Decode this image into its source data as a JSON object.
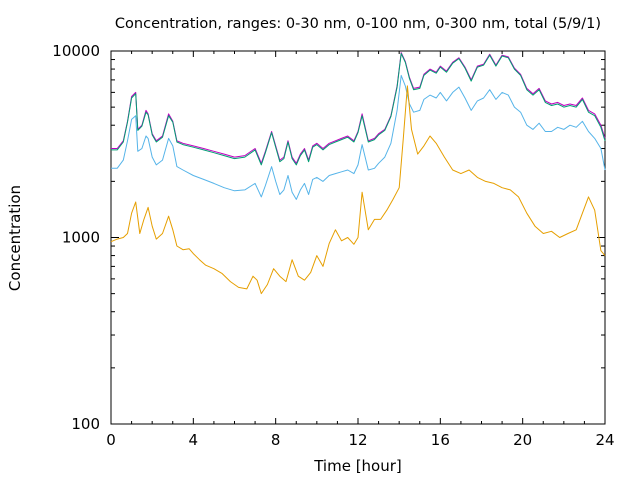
{
  "chart_data": {
    "type": "line",
    "title": "Concentration, ranges: 0-30 nm, 0-100 nm, 0-300 nm, total (5/9/1)",
    "xlabel": "Time [hour]",
    "ylabel": "Concentration",
    "xlim": [
      0,
      24
    ],
    "ylim": [
      100,
      10000
    ],
    "yscale": "log",
    "grid": false,
    "legend": "none",
    "x_ticks": [
      0,
      4,
      8,
      12,
      16,
      20,
      24
    ],
    "x_tick_labels": [
      "0",
      "4",
      "8",
      "12",
      "16",
      "20",
      "24"
    ],
    "y_ticks": [
      100,
      1000,
      10000
    ],
    "y_tick_labels": [
      "100",
      "1000",
      "10000"
    ],
    "series": [
      {
        "color": "#c000c0",
        "x": [
          0,
          0.3,
          0.6,
          0.8,
          1.0,
          1.2,
          1.3,
          1.5,
          1.7,
          1.8,
          2.0,
          2.2,
          2.5,
          2.8,
          3.0,
          3.2,
          3.5,
          4.0,
          4.5,
          5.0,
          5.5,
          6.0,
          6.5,
          7.0,
          7.3,
          7.5,
          7.8,
          8.0,
          8.2,
          8.4,
          8.6,
          8.8,
          9.0,
          9.2,
          9.4,
          9.6,
          9.8,
          10.0,
          10.3,
          10.6,
          10.9,
          11.2,
          11.5,
          11.8,
          12.0,
          12.2,
          12.5,
          12.8,
          13.0,
          13.3,
          13.6,
          13.9,
          14.1,
          14.3,
          14.5,
          14.7,
          15.0,
          15.2,
          15.5,
          15.8,
          16.0,
          16.3,
          16.6,
          16.9,
          17.2,
          17.5,
          17.8,
          18.1,
          18.4,
          18.7,
          19.0,
          19.3,
          19.6,
          19.9,
          20.2,
          20.5,
          20.8,
          21.1,
          21.4,
          21.7,
          22.0,
          22.3,
          22.6,
          22.9,
          23.2,
          23.5,
          23.8,
          24.0
        ],
        "y": [
          3000,
          3000,
          3300,
          4200,
          5700,
          6000,
          3800,
          4000,
          4800,
          4600,
          3600,
          3300,
          3500,
          4600,
          4200,
          3300,
          3200,
          3100,
          3000,
          2900,
          2800,
          2700,
          2750,
          3000,
          2500,
          2900,
          3700,
          3100,
          2600,
          2700,
          3300,
          2700,
          2500,
          2800,
          3000,
          2600,
          3100,
          3200,
          3000,
          3200,
          3300,
          3400,
          3500,
          3300,
          3700,
          4600,
          3300,
          3400,
          3600,
          3800,
          4500,
          6500,
          9800,
          8800,
          7200,
          6300,
          6400,
          7500,
          8000,
          7700,
          8300,
          7800,
          8700,
          9200,
          8200,
          7000,
          8300,
          8500,
          9600,
          8400,
          9500,
          9300,
          8100,
          7500,
          6300,
          5900,
          6300,
          5400,
          5200,
          5300,
          5100,
          5200,
          5100,
          5600,
          4800,
          4600,
          4000,
          3400
        ]
      },
      {
        "color": "#009e73",
        "x": [
          0,
          0.3,
          0.6,
          0.8,
          1.0,
          1.2,
          1.3,
          1.5,
          1.7,
          1.8,
          2.0,
          2.2,
          2.5,
          2.8,
          3.0,
          3.2,
          3.5,
          4.0,
          4.5,
          5.0,
          5.5,
          6.0,
          6.5,
          7.0,
          7.3,
          7.5,
          7.8,
          8.0,
          8.2,
          8.4,
          8.6,
          8.8,
          9.0,
          9.2,
          9.4,
          9.6,
          9.8,
          10.0,
          10.3,
          10.6,
          10.9,
          11.2,
          11.5,
          11.8,
          12.0,
          12.2,
          12.5,
          12.8,
          13.0,
          13.3,
          13.6,
          13.9,
          14.1,
          14.3,
          14.5,
          14.7,
          15.0,
          15.2,
          15.5,
          15.8,
          16.0,
          16.3,
          16.6,
          16.9,
          17.2,
          17.5,
          17.8,
          18.1,
          18.4,
          18.7,
          19.0,
          19.3,
          19.6,
          19.9,
          20.2,
          20.5,
          20.8,
          21.1,
          21.4,
          21.7,
          22.0,
          22.3,
          22.6,
          22.9,
          23.2,
          23.5,
          23.8,
          24.0
        ],
        "y": [
          2950,
          2950,
          3250,
          4150,
          5600,
          5900,
          3750,
          3950,
          4700,
          4550,
          3550,
          3250,
          3450,
          4500,
          4150,
          3250,
          3150,
          3050,
          2950,
          2850,
          2750,
          2650,
          2700,
          2950,
          2450,
          2850,
          3650,
          3050,
          2550,
          2650,
          3250,
          2650,
          2450,
          2750,
          2950,
          2550,
          3050,
          3150,
          2950,
          3150,
          3250,
          3350,
          3450,
          3250,
          3650,
          4500,
          3250,
          3350,
          3550,
          3750,
          4450,
          6400,
          9700,
          8700,
          7100,
          6200,
          6300,
          7400,
          7900,
          7600,
          8200,
          7700,
          8600,
          9100,
          8100,
          6900,
          8200,
          8400,
          9500,
          8300,
          9400,
          9200,
          8000,
          7400,
          6200,
          5800,
          6200,
          5300,
          5100,
          5200,
          5000,
          5100,
          5000,
          5500,
          4700,
          4500,
          3900,
          3300
        ]
      },
      {
        "color": "#56b4e9",
        "x": [
          0,
          0.3,
          0.6,
          0.8,
          1.0,
          1.2,
          1.3,
          1.5,
          1.7,
          1.8,
          2.0,
          2.2,
          2.5,
          2.8,
          3.0,
          3.2,
          3.5,
          4.0,
          4.5,
          5.0,
          5.5,
          6.0,
          6.5,
          7.0,
          7.3,
          7.5,
          7.8,
          8.0,
          8.2,
          8.4,
          8.6,
          8.8,
          9.0,
          9.2,
          9.4,
          9.6,
          9.8,
          10.0,
          10.3,
          10.6,
          10.9,
          11.2,
          11.5,
          11.8,
          12.0,
          12.2,
          12.5,
          12.8,
          13.0,
          13.3,
          13.6,
          13.9,
          14.1,
          14.3,
          14.5,
          14.7,
          15.0,
          15.2,
          15.5,
          15.8,
          16.0,
          16.3,
          16.6,
          16.9,
          17.2,
          17.5,
          17.8,
          18.1,
          18.4,
          18.7,
          19.0,
          19.3,
          19.6,
          19.9,
          20.2,
          20.5,
          20.8,
          21.1,
          21.4,
          21.7,
          22.0,
          22.3,
          22.6,
          22.9,
          23.2,
          23.5,
          23.8,
          24.0
        ],
        "y": [
          2350,
          2350,
          2600,
          3300,
          4300,
          4500,
          2900,
          3000,
          3500,
          3400,
          2700,
          2450,
          2600,
          3400,
          3100,
          2400,
          2300,
          2150,
          2050,
          1950,
          1850,
          1780,
          1800,
          1950,
          1650,
          1900,
          2400,
          2000,
          1700,
          1800,
          2150,
          1750,
          1600,
          1800,
          1950,
          1700,
          2050,
          2100,
          2000,
          2150,
          2200,
          2250,
          2300,
          2200,
          2450,
          3150,
          2300,
          2350,
          2500,
          2700,
          3200,
          4800,
          7400,
          6500,
          5200,
          4700,
          4800,
          5500,
          5800,
          5600,
          6000,
          5400,
          6000,
          6400,
          5600,
          4800,
          5400,
          5600,
          6200,
          5500,
          6000,
          5800,
          5000,
          4700,
          4000,
          3800,
          4100,
          3700,
          3700,
          3900,
          3800,
          4000,
          3900,
          4200,
          3700,
          3400,
          3000,
          2300
        ]
      },
      {
        "color": "#e69f00",
        "x": [
          0,
          0.3,
          0.6,
          0.8,
          1.0,
          1.2,
          1.4,
          1.6,
          1.8,
          2.0,
          2.2,
          2.5,
          2.8,
          3.0,
          3.2,
          3.5,
          3.8,
          4.0,
          4.3,
          4.6,
          5.0,
          5.4,
          5.8,
          6.2,
          6.6,
          6.9,
          7.1,
          7.3,
          7.6,
          7.9,
          8.2,
          8.5,
          8.8,
          9.1,
          9.4,
          9.7,
          10.0,
          10.3,
          10.6,
          10.9,
          11.2,
          11.5,
          11.8,
          12.0,
          12.2,
          12.5,
          12.8,
          13.1,
          13.4,
          13.7,
          14.0,
          14.2,
          14.4,
          14.6,
          14.9,
          15.2,
          15.5,
          15.8,
          16.2,
          16.6,
          17.0,
          17.4,
          17.8,
          18.2,
          18.6,
          19.0,
          19.4,
          19.8,
          20.2,
          20.6,
          21.0,
          21.4,
          21.8,
          22.2,
          22.6,
          22.9,
          23.2,
          23.5,
          23.8,
          24.0
        ],
        "y": [
          950,
          980,
          1000,
          1050,
          1350,
          1550,
          1050,
          1250,
          1450,
          1150,
          980,
          1050,
          1300,
          1100,
          900,
          860,
          870,
          820,
          760,
          710,
          680,
          640,
          580,
          540,
          530,
          620,
          590,
          500,
          560,
          680,
          620,
          580,
          760,
          620,
          590,
          650,
          800,
          700,
          930,
          1100,
          960,
          1000,
          920,
          1000,
          1750,
          1100,
          1250,
          1250,
          1400,
          1600,
          1850,
          3400,
          6500,
          3800,
          2800,
          3100,
          3500,
          3200,
          2700,
          2300,
          2200,
          2300,
          2100,
          2000,
          1950,
          1850,
          1800,
          1650,
          1350,
          1150,
          1050,
          1080,
          1000,
          1050,
          1100,
          1350,
          1650,
          1400,
          850,
          800
        ]
      }
    ]
  }
}
